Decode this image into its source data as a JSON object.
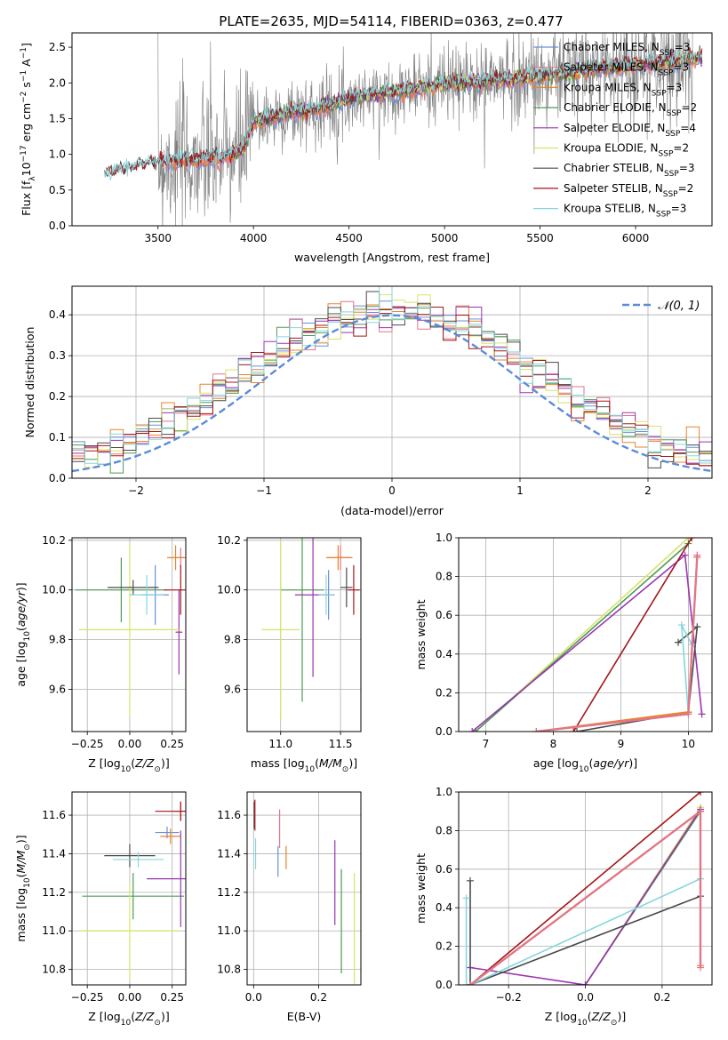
{
  "figure_title": "PLATE=2635, MJD=54114, FIBERID=0363, z=0.477",
  "colors": {
    "c_miles": "#6a8fd8",
    "s_miles": "#e3748b",
    "k_miles": "#e8842a",
    "c_elodie": "#4e9a55",
    "s_elodie": "#9b34b3",
    "k_elodie": "#d6e36a",
    "c_stelib": "#4a4a4a",
    "s_stelib": "#a4161a",
    "k_stelib": "#86d6dc",
    "data": "#7f7f7f",
    "normal": "#5b8bd9"
  },
  "chart_data": [
    {
      "id": "spectrum",
      "type": "line",
      "xlabel": "wavelength [Angstrom, rest frame]",
      "ylabel": "Flux [f",
      "xlim": [
        3050,
        6400
      ],
      "ylim": [
        0,
        2.7
      ],
      "xticks": [
        3500,
        4000,
        4500,
        5000,
        5500,
        6000
      ],
      "yticks": [
        0.0,
        0.5,
        1.0,
        1.5,
        2.0,
        2.5
      ],
      "grid": false,
      "legend_position": "top-right",
      "legend": [
        {
          "lib": "Chabrier MILES",
          "n": "3",
          "color_key": "c_miles"
        },
        {
          "lib": "Salpeter MILES",
          "n": "3",
          "color_key": "s_miles"
        },
        {
          "lib": "Kroupa MILES",
          "n": "3",
          "color_key": "k_miles"
        },
        {
          "lib": "Chabrier ELODIE",
          "n": "2",
          "color_key": "c_elodie"
        },
        {
          "lib": "Salpeter ELODIE",
          "n": "4",
          "color_key": "s_elodie"
        },
        {
          "lib": "Kroupa ELODIE",
          "n": "2",
          "color_key": "k_elodie"
        },
        {
          "lib": "Chabrier STELIB",
          "n": "3",
          "color_key": "c_stelib"
        },
        {
          "lib": "Salpeter STELIB",
          "n": "2",
          "color_key": "s_stelib"
        },
        {
          "lib": "Kroupa STELIB",
          "n": "3",
          "color_key": "k_stelib"
        }
      ],
      "model_continuum": {
        "x": [
          3220,
          3300,
          3400,
          3500,
          3600,
          3700,
          3800,
          3900,
          3950,
          4000,
          4100,
          4200,
          4300,
          4400,
          4500,
          4600,
          4700,
          4800,
          4900,
          5000,
          5200,
          5400,
          5600,
          5800,
          6000,
          6200,
          6350
        ],
        "y": [
          0.7,
          0.76,
          0.83,
          0.88,
          0.9,
          0.92,
          0.95,
          0.98,
          1.1,
          1.45,
          1.52,
          1.58,
          1.62,
          1.68,
          1.78,
          1.82,
          1.86,
          1.9,
          1.95,
          1.98,
          2.02,
          2.07,
          2.12,
          2.2,
          2.25,
          2.3,
          2.35
        ]
      }
    },
    {
      "id": "residuals",
      "type": "line",
      "xlabel": "(data-model)/error",
      "ylabel": "Normed distribution",
      "xlim": [
        -2.5,
        2.5
      ],
      "ylim": [
        0,
        0.47
      ],
      "xticks": [
        -2,
        -1,
        0,
        1,
        2
      ],
      "yticks": [
        0.0,
        0.1,
        0.2,
        0.3,
        0.4
      ],
      "grid": true,
      "legend_position": "top-right",
      "normal_label": "𝒩(0, 1)",
      "bin_width": 0.1
    },
    {
      "id": "age_vs_Z",
      "type": "scatter",
      "xlabel": "Z [log",
      "ylabel": "age  [log",
      "xlim": [
        -0.34,
        0.33
      ],
      "ylim": [
        9.43,
        10.21
      ],
      "xticks": [
        -0.25,
        0.0,
        0.25
      ],
      "xtick_labels": [
        "−0.25",
        "0.00",
        "0.25"
      ],
      "yticks": [
        9.6,
        9.8,
        10.0,
        10.2
      ],
      "ytick_labels": [
        "9.6",
        "9.8",
        "10.0",
        "10.2"
      ],
      "grid": true,
      "points": [
        {
          "c": "c_miles",
          "x": 0.15,
          "xe": 0.08,
          "y": 9.98,
          "ye": 0.12
        },
        {
          "c": "s_miles",
          "x": 0.3,
          "xe": 0.04,
          "y": 10.13,
          "ye": 0.04
        },
        {
          "c": "k_miles",
          "x": 0.27,
          "xe": 0.05,
          "y": 10.13,
          "ye": 0.05
        },
        {
          "c": "c_elodie",
          "x": -0.05,
          "xe": 0.27,
          "y": 10.0,
          "ye": 0.13
        },
        {
          "c": "s_elodie",
          "x": 0.29,
          "xe": 0.02,
          "y": 9.83,
          "ye": 0.17
        },
        {
          "c": "k_elodie",
          "x": 0.0,
          "xe": 0.3,
          "y": 9.84,
          "ye": 0.35
        },
        {
          "c": "c_stelib",
          "x": 0.02,
          "xe": 0.15,
          "y": 10.01,
          "ye": 0.03
        },
        {
          "c": "s_stelib",
          "x": 0.3,
          "xe": 0.1,
          "y": 10.0,
          "ye": 0.1
        },
        {
          "c": "k_stelib",
          "x": 0.1,
          "xe": 0.1,
          "y": 9.98,
          "ye": 0.08
        }
      ]
    },
    {
      "id": "age_vs_mass",
      "type": "scatter",
      "xlabel": "mass [log",
      "ylabel": "",
      "xlim": [
        10.72,
        11.67
      ],
      "ylim": [
        9.43,
        10.21
      ],
      "xticks": [
        11.0,
        11.5
      ],
      "xtick_labels": [
        "11.0",
        "11.5"
      ],
      "yticks": [
        9.6,
        9.8,
        10.0,
        10.2
      ],
      "ytick_labels": [
        "9.6",
        "9.8",
        "10.0",
        "10.2"
      ],
      "grid": true,
      "points": [
        {
          "c": "c_miles",
          "x": 11.4,
          "xe": 0.05,
          "y": 9.98,
          "ye": 0.1
        },
        {
          "c": "s_miles",
          "x": 11.5,
          "xe": 0.1,
          "y": 10.13,
          "ye": 0.05
        },
        {
          "c": "k_miles",
          "x": 11.48,
          "xe": 0.1,
          "y": 10.13,
          "ye": 0.05
        },
        {
          "c": "c_elodie",
          "x": 11.18,
          "xe": 0.18,
          "y": 10.0,
          "ye": 0.45
        },
        {
          "c": "s_elodie",
          "x": 11.27,
          "xe": 0.15,
          "y": 9.98,
          "ye": 0.33
        },
        {
          "c": "k_elodie",
          "x": 11.0,
          "xe": 0.16,
          "y": 9.84,
          "ye": 0.36
        },
        {
          "c": "c_stelib",
          "x": 11.55,
          "xe": 0.05,
          "y": 10.01,
          "ye": 0.08
        },
        {
          "c": "s_stelib",
          "x": 11.61,
          "xe": 0.05,
          "y": 10.0,
          "ye": 0.1
        },
        {
          "c": "k_stelib",
          "x": 11.38,
          "xe": 0.06,
          "y": 9.98,
          "ye": 0.08
        }
      ]
    },
    {
      "id": "weight_vs_age",
      "type": "line",
      "xlabel": "age  [log",
      "ylabel": "mass weight",
      "xlim": [
        6.6,
        10.35
      ],
      "ylim": [
        0,
        1.0
      ],
      "xticks": [
        7,
        8,
        9,
        10
      ],
      "xtick_labels": [
        "7",
        "8",
        "9",
        "10"
      ],
      "yticks": [
        0.0,
        0.2,
        0.4,
        0.6,
        0.8,
        1.0
      ],
      "ytick_labels": [
        "0.0",
        "0.2",
        "0.4",
        "0.6",
        "0.8",
        "1.0"
      ],
      "grid": true,
      "series": [
        {
          "c": "k_elodie",
          "x": [
            6.85,
            10.0
          ],
          "y": [
            0.0,
            1.0
          ]
        },
        {
          "c": "c_elodie",
          "x": [
            6.85,
            10.0
          ],
          "y": [
            0.0,
            0.97
          ]
        },
        {
          "c": "s_elodie",
          "x": [
            6.8,
            9.95,
            10.2
          ],
          "y": [
            0.0,
            0.91,
            0.09
          ]
        },
        {
          "c": "s_stelib",
          "x": [
            8.3,
            10.05
          ],
          "y": [
            0.0,
            1.0
          ]
        },
        {
          "c": "c_stelib",
          "x": [
            8.35,
            10.0,
            10.13,
            9.85
          ],
          "y": [
            0.0,
            0.1,
            0.54,
            0.46
          ]
        },
        {
          "c": "k_stelib",
          "x": [
            7.75,
            10.0,
            9.9,
            10.05
          ],
          "y": [
            0.0,
            0.09,
            0.55,
            0.45
          ]
        },
        {
          "c": "k_miles",
          "x": [
            7.75,
            10.0,
            10.13,
            10.13
          ],
          "y": [
            0.0,
            0.1,
            0.9,
            0.9
          ]
        },
        {
          "c": "s_miles",
          "x": [
            7.75,
            10.0,
            10.13,
            10.13
          ],
          "y": [
            0.0,
            0.09,
            0.9,
            0.91
          ]
        }
      ]
    },
    {
      "id": "mass_vs_Z",
      "type": "scatter",
      "xlabel": "Z [log",
      "ylabel": "mass [log",
      "xlim": [
        -0.34,
        0.33
      ],
      "ylim": [
        10.72,
        11.72
      ],
      "xticks": [
        -0.25,
        0.0,
        0.25
      ],
      "xtick_labels": [
        "−0.25",
        "0.00",
        "0.25"
      ],
      "yticks": [
        10.8,
        11.0,
        11.2,
        11.4,
        11.6
      ],
      "ytick_labels": [
        "10.8",
        "11.0",
        "11.2",
        "11.4",
        "11.6"
      ],
      "grid": true,
      "points": [
        {
          "c": "c_miles",
          "x": 0.22,
          "xe": 0.07,
          "y": 11.51,
          "ye": 0.03
        },
        {
          "c": "s_miles",
          "x": 0.3,
          "xe": 0.04,
          "y": 11.62,
          "ye": 0.05
        },
        {
          "c": "k_miles",
          "x": 0.24,
          "xe": 0.06,
          "y": 11.49,
          "ye": 0.04
        },
        {
          "c": "c_elodie",
          "x": 0.02,
          "xe": 0.3,
          "y": 11.18,
          "ye": 0.12
        },
        {
          "c": "s_elodie",
          "x": 0.3,
          "xe": 0.2,
          "y": 11.27,
          "ye": 0.25
        },
        {
          "c": "k_elodie",
          "x": 0.0,
          "xe": 0.3,
          "y": 11.0,
          "ye": 0.25
        },
        {
          "c": "c_stelib",
          "x": 0.0,
          "xe": 0.15,
          "y": 11.39,
          "ye": 0.06
        },
        {
          "c": "s_stelib",
          "x": 0.3,
          "xe": 0.15,
          "y": 11.62,
          "ye": 0.05
        },
        {
          "c": "k_stelib",
          "x": 0.05,
          "xe": 0.15,
          "y": 11.37,
          "ye": 0.04
        }
      ]
    },
    {
      "id": "mass_vs_ebv",
      "type": "scatter",
      "xlabel": "E(B-V)",
      "ylabel": "",
      "xlim": [
        -0.02,
        0.33
      ],
      "ylim": [
        10.72,
        11.72
      ],
      "xticks": [
        0.0,
        0.2
      ],
      "xtick_labels": [
        "0.0",
        "0.2"
      ],
      "yticks": [
        10.8,
        11.0,
        11.2,
        11.4,
        11.6
      ],
      "ytick_labels": [
        "10.8",
        "11.0",
        "11.2",
        "11.4",
        "11.6"
      ],
      "grid": true,
      "points": [
        {
          "c": "c_miles",
          "x": 0.075,
          "xe": 0,
          "y": 11.36,
          "ye": 0.08
        },
        {
          "c": "s_miles",
          "x": 0.08,
          "xe": 0,
          "y": 11.53,
          "ye": 0.1
        },
        {
          "c": "k_miles",
          "x": 0.1,
          "xe": 0,
          "y": 11.38,
          "ye": 0.06
        },
        {
          "c": "c_elodie",
          "x": 0.27,
          "xe": 0,
          "y": 11.05,
          "ye": 0.27
        },
        {
          "c": "s_elodie",
          "x": 0.25,
          "xe": 0,
          "y": 11.25,
          "ye": 0.22
        },
        {
          "c": "k_elodie",
          "x": 0.31,
          "xe": 0,
          "y": 11.0,
          "ye": 0.3
        },
        {
          "c": "c_stelib",
          "x": 0.002,
          "xe": 0,
          "y": 11.6,
          "ye": 0.07
        },
        {
          "c": "s_stelib",
          "x": 0.004,
          "xe": 0,
          "y": 11.6,
          "ye": 0.08
        },
        {
          "c": "k_stelib",
          "x": 0.006,
          "xe": 0,
          "y": 11.4,
          "ye": 0.08
        }
      ]
    },
    {
      "id": "weight_vs_Z",
      "type": "line",
      "xlabel": "Z [log",
      "ylabel": "mass weight",
      "xlim": [
        -0.33,
        0.33
      ],
      "ylim": [
        0,
        1.0
      ],
      "xticks": [
        -0.2,
        0.0,
        0.2
      ],
      "xtick_labels": [
        "−0.2",
        "0.0",
        "0.2"
      ],
      "yticks": [
        0.0,
        0.2,
        0.4,
        0.6,
        0.8,
        1.0
      ],
      "ytick_labels": [
        "0.0",
        "0.2",
        "0.4",
        "0.6",
        "0.8",
        "1.0"
      ],
      "grid": true,
      "series": [
        {
          "c": "s_stelib",
          "x": [
            -0.3,
            0.3
          ],
          "y": [
            0.0,
            1.0
          ]
        },
        {
          "c": "k_elodie",
          "x": [
            0.0,
            0.3
          ],
          "y": [
            0.0,
            0.92
          ]
        },
        {
          "c": "c_elodie",
          "x": [
            0.0,
            0.3
          ],
          "y": [
            0.0,
            0.9
          ]
        },
        {
          "c": "s_elodie",
          "x": [
            -0.3,
            0.0,
            0.3
          ],
          "y": [
            0.09,
            0.0,
            0.91
          ]
        },
        {
          "c": "c_stelib",
          "x": [
            -0.3,
            0.3
          ],
          "y": [
            0.0,
            0.46
          ]
        },
        {
          "c": "k_stelib",
          "x": [
            -0.3,
            0.3
          ],
          "y": [
            0.0,
            0.55
          ]
        },
        {
          "c": "c_stelib",
          "x": [
            -0.3,
            -0.3
          ],
          "y": [
            0.0,
            0.54
          ]
        },
        {
          "c": "k_stelib",
          "x": [
            -0.31,
            -0.31
          ],
          "y": [
            0.0,
            0.45
          ]
        },
        {
          "c": "k_miles",
          "x": [
            -0.3,
            0.3,
            0.3
          ],
          "y": [
            0.0,
            0.9,
            0.1
          ]
        },
        {
          "c": "s_miles",
          "x": [
            -0.3,
            0.3,
            0.3
          ],
          "y": [
            0.0,
            0.9,
            0.09
          ]
        }
      ]
    }
  ]
}
